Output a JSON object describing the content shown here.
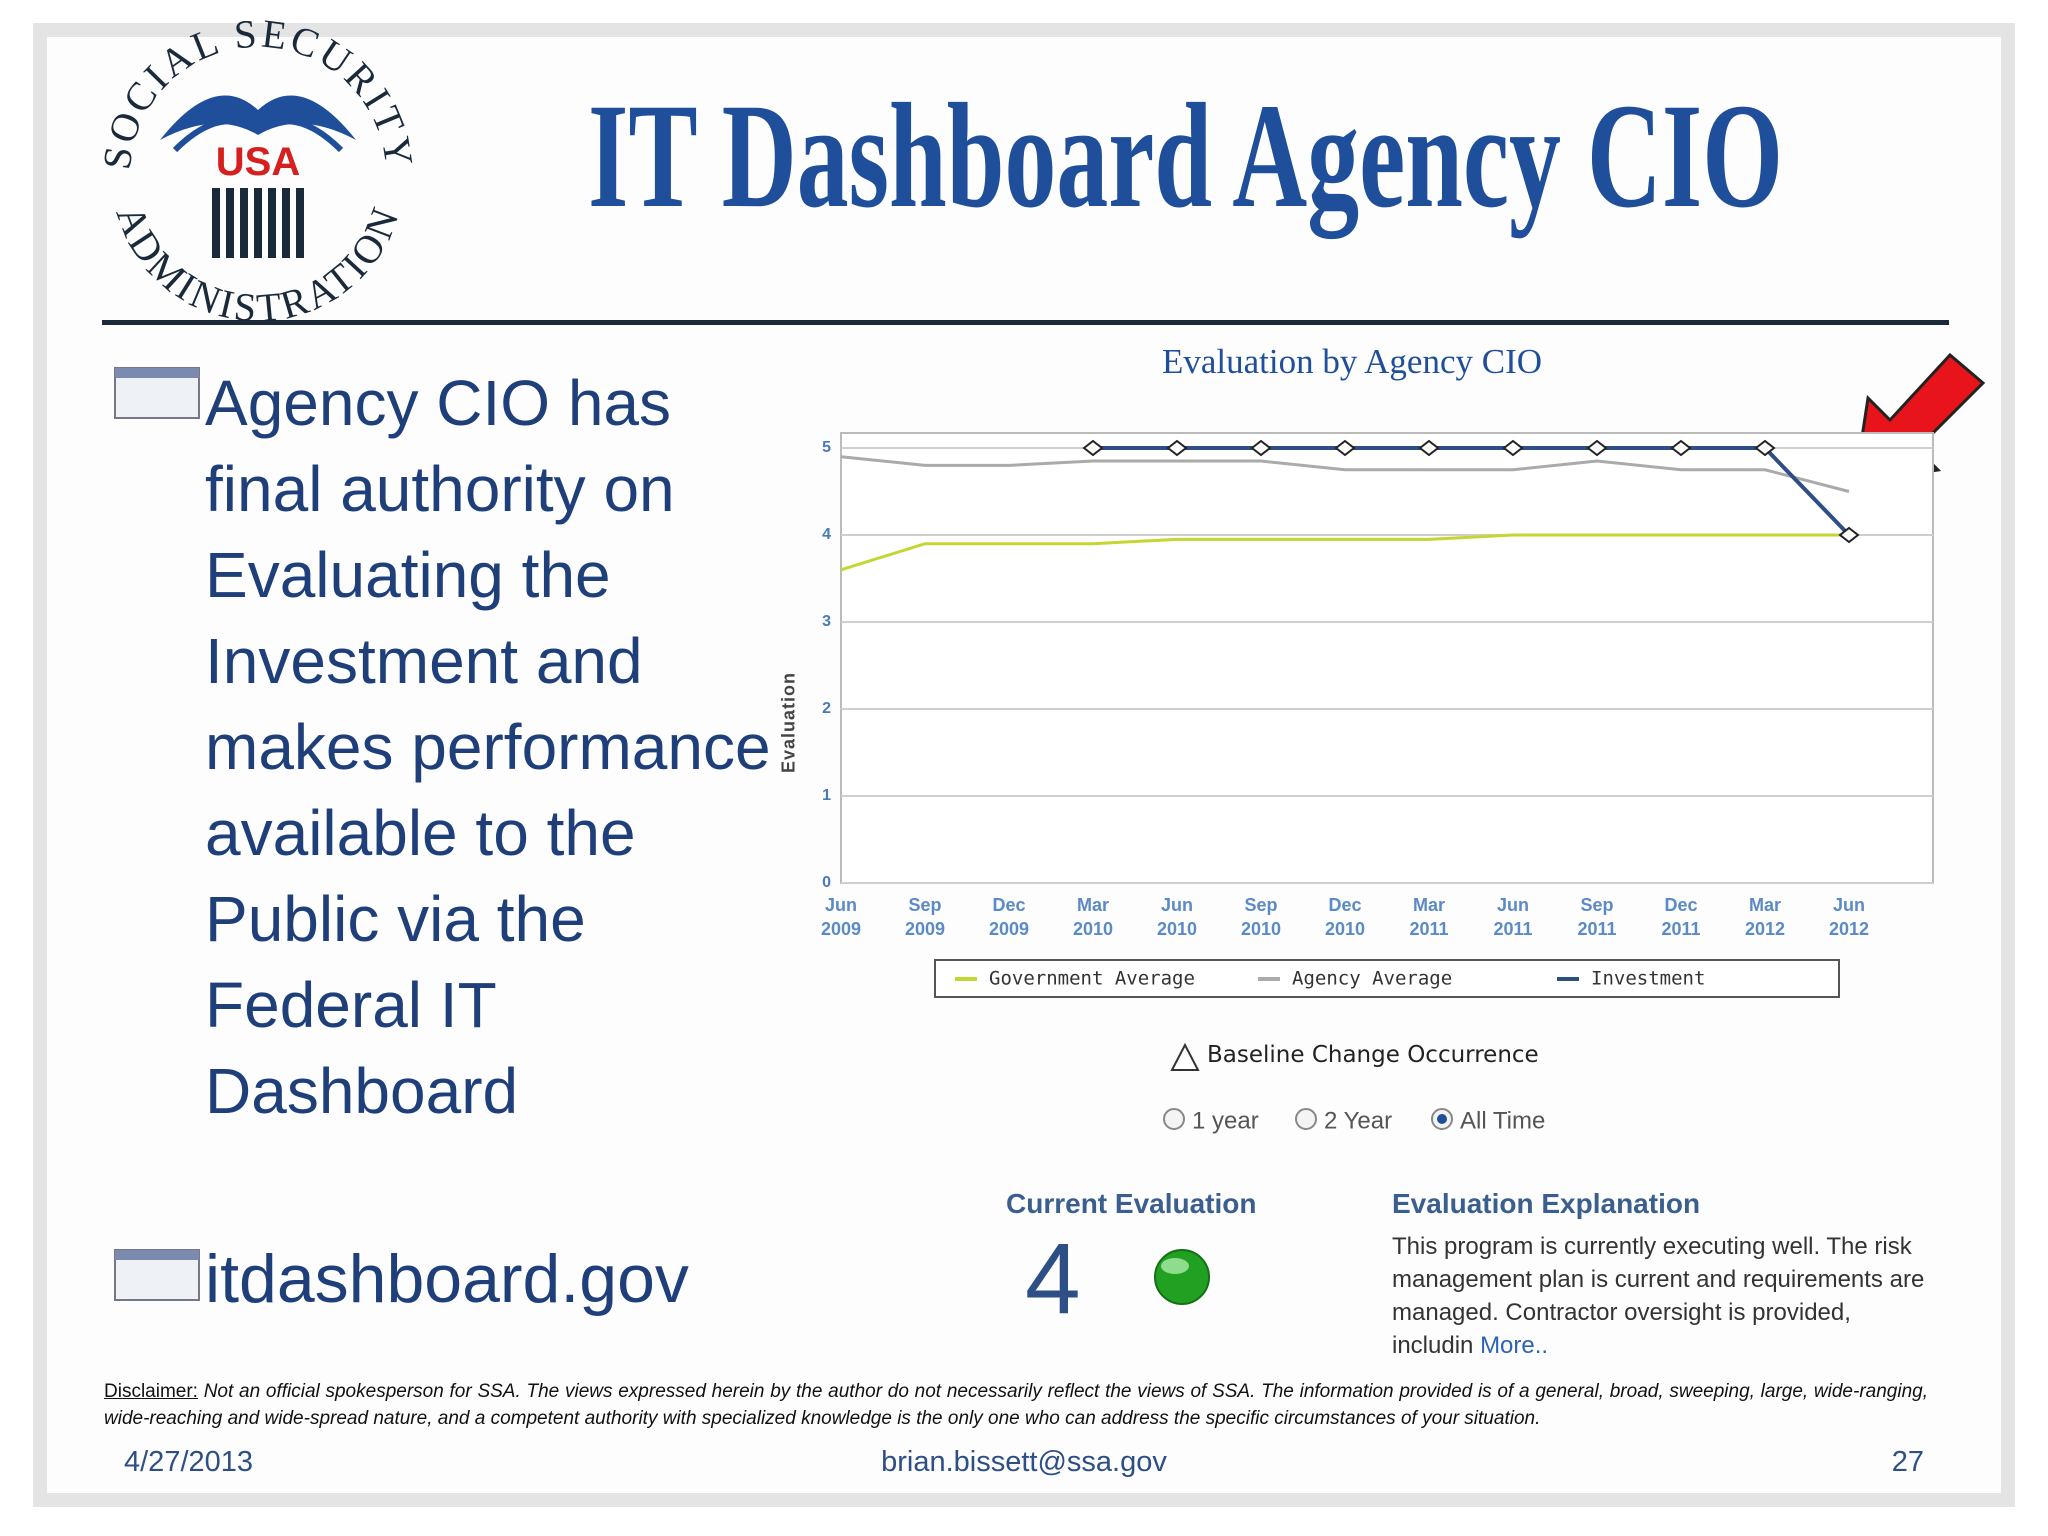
{
  "logo": {
    "top": "SOCIAL SECURITY",
    "center": "USA",
    "bottom": "ADMINISTRATION"
  },
  "header": {
    "title": "IT Dashboard Agency CIO"
  },
  "bullets": [
    "Agency CIO has final authority on Evaluating the Investment and makes performance available to the Public via the Federal IT Dashboard",
    "itdashboard.gov"
  ],
  "chart_data": {
    "type": "line",
    "title": "Evaluation by Agency CIO",
    "y_label": "Evaluation",
    "categories": [
      "Jun 2009",
      "Sep 2009",
      "Dec 2009",
      "Mar 2010",
      "Jun 2010",
      "Sep 2010",
      "Dec 2010",
      "Mar 2011",
      "Jun 2011",
      "Sep 2011",
      "Dec 2011",
      "Mar 2012",
      "Jun 2012"
    ],
    "series": [
      {
        "name": "Government Average",
        "color": "#c5d633",
        "values": [
          3.6,
          3.9,
          3.9,
          3.9,
          3.95,
          3.95,
          3.95,
          3.95,
          4.0,
          4.0,
          4.0,
          4.0,
          4.0
        ]
      },
      {
        "name": "Agency Average",
        "color": "#aaaaaa",
        "values": [
          4.9,
          4.8,
          4.8,
          4.85,
          4.85,
          4.85,
          4.75,
          4.75,
          4.75,
          4.85,
          4.75,
          4.75,
          4.5
        ]
      },
      {
        "name": "Investment",
        "color": "#2d4f86",
        "values": [
          null,
          null,
          null,
          5,
          5,
          5,
          5,
          5,
          5,
          5,
          5,
          5,
          4
        ]
      }
    ],
    "ylim": [
      0,
      5
    ],
    "yticks": [
      0,
      1,
      2,
      3,
      4,
      5
    ],
    "grid": true
  },
  "baseline_legend": "Baseline Change Occurrence",
  "range_options": [
    "1 year",
    "2 Year",
    "All Time"
  ],
  "current_evaluation": {
    "heading": "Current Evaluation",
    "value": 4
  },
  "explanation": {
    "heading": "Evaluation Explanation",
    "text": "This program is currently executing well. The risk management plan is current and requirements are managed. Contractor oversight is provided, includin",
    "link": "More.."
  },
  "disclaimer": {
    "label": "Disclaimer:",
    "text": "Not an official spokesperson for SSA. The views expressed herein by the author do not necessarily reflect the views of SSA. The information provided is of a general, broad, sweeping, large, wide-ranging, wide-reaching and wide-spread nature, and a competent authority with specialized knowledge is the only one who can address the specific circumstances of your situation."
  },
  "footer": {
    "date": "4/27/2013",
    "email": "brian.bissett@ssa.gov",
    "page": "27"
  }
}
